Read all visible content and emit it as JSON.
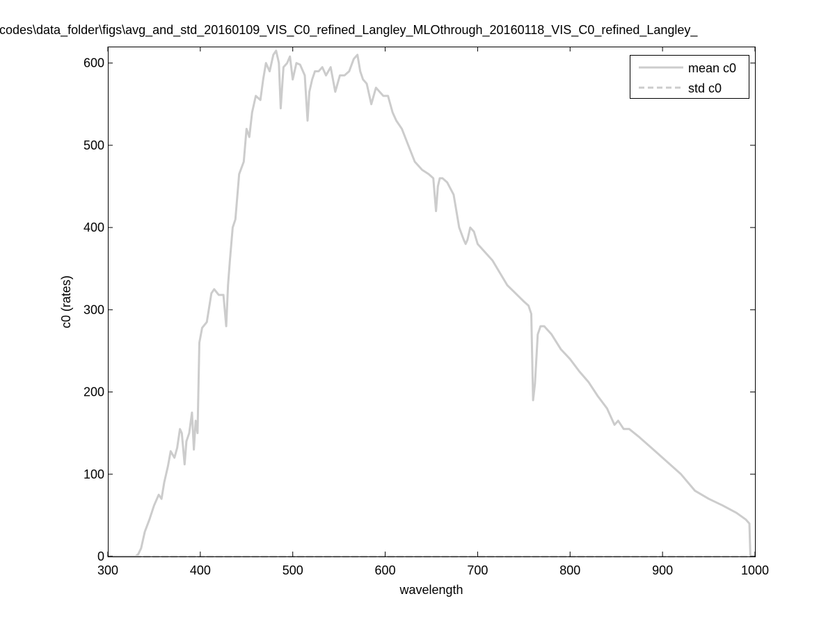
{
  "chart_data": {
    "type": "line",
    "title": "codes\\data_folder\\figs\\avg_and_std_20160109_VIS_C0_refined_Langley_MLOthrough_20160118_VIS_C0_refined_Langley_",
    "xlabel": "wavelength",
    "ylabel": "c0 (rates)",
    "xlim": [
      300,
      1000
    ],
    "ylim": [
      0,
      620
    ],
    "xticks": [
      "300",
      "400",
      "500",
      "600",
      "700",
      "800",
      "900",
      "1000"
    ],
    "yticks": [
      "0",
      "100",
      "200",
      "300",
      "400",
      "500",
      "600"
    ],
    "grid": false,
    "legend_position": "top-right",
    "series": [
      {
        "name": "mean c0",
        "style": "solid",
        "color": "#cccccc",
        "x": [
          300,
          330,
          333,
          336,
          340,
          345,
          350,
          355,
          358,
          361,
          365,
          368,
          372,
          375,
          378,
          380,
          383,
          385,
          388,
          391,
          393,
          395,
          397,
          399,
          402,
          407,
          412,
          415,
          420,
          425,
          428,
          430,
          432,
          435,
          438,
          442,
          447,
          450,
          453,
          456,
          460,
          465,
          468,
          471,
          475,
          479,
          482,
          485,
          487,
          490,
          494,
          497,
          500,
          504,
          508,
          513,
          516,
          518,
          521,
          524,
          528,
          532,
          536,
          541,
          546,
          551,
          556,
          561,
          566,
          570,
          573,
          576,
          580,
          585,
          590,
          594,
          598,
          603,
          608,
          612,
          618,
          625,
          632,
          640,
          647,
          652,
          655,
          657,
          659,
          662,
          667,
          674,
          680,
          685,
          687,
          689,
          692,
          696,
          700,
          708,
          716,
          724,
          732,
          741,
          750,
          755,
          758,
          760,
          762,
          765,
          768,
          772,
          780,
          790,
          800,
          810,
          820,
          830,
          840,
          848,
          852,
          858,
          864,
          875,
          890,
          905,
          920,
          935,
          950,
          965,
          980,
          990,
          994,
          995
        ],
        "values": [
          0,
          0,
          3,
          10,
          30,
          45,
          62,
          75,
          70,
          90,
          110,
          128,
          120,
          132,
          155,
          150,
          112,
          140,
          150,
          175,
          130,
          165,
          150,
          260,
          278,
          285,
          320,
          325,
          318,
          318,
          280,
          330,
          360,
          400,
          410,
          465,
          480,
          520,
          510,
          540,
          560,
          555,
          580,
          600,
          590,
          610,
          615,
          600,
          545,
          595,
          600,
          608,
          580,
          600,
          598,
          585,
          530,
          565,
          580,
          590,
          590,
          595,
          585,
          595,
          565,
          585,
          585,
          590,
          605,
          610,
          590,
          580,
          575,
          550,
          570,
          565,
          560,
          560,
          540,
          530,
          520,
          500,
          480,
          470,
          465,
          460,
          420,
          450,
          460,
          460,
          455,
          440,
          400,
          385,
          380,
          385,
          400,
          395,
          380,
          370,
          360,
          345,
          330,
          320,
          310,
          305,
          295,
          190,
          210,
          270,
          280,
          280,
          270,
          252,
          240,
          225,
          212,
          195,
          180,
          160,
          165,
          155,
          155,
          145,
          130,
          115,
          100,
          80,
          70,
          62,
          53,
          45,
          40,
          0
        ]
      },
      {
        "name": "std c0",
        "style": "dashed",
        "color": "#cccccc",
        "x": [
          300,
          1000
        ],
        "values": [
          0,
          0
        ]
      }
    ]
  }
}
